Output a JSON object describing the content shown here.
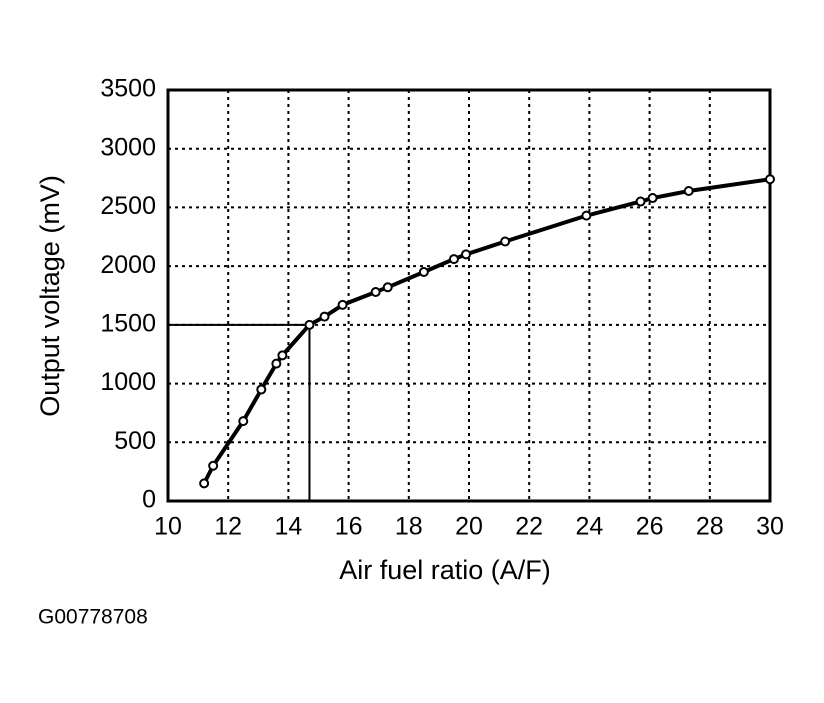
{
  "chart_data": {
    "type": "line",
    "x_label": "Air fuel ratio (A/F)",
    "y_label": "Output voltage (mV)",
    "caption": "G00778708",
    "x": [
      11.2,
      11.5,
      12.5,
      13.1,
      13.6,
      13.8,
      14.7,
      15.2,
      15.8,
      16.9,
      17.3,
      18.5,
      19.5,
      19.9,
      21.2,
      23.9,
      25.7,
      26.1,
      27.3,
      30
    ],
    "series": [
      {
        "name": "Output voltage",
        "color": "#000000",
        "values": [
          150,
          300,
          680,
          950,
          1170,
          1240,
          1500,
          1570,
          1670,
          1780,
          1820,
          1950,
          2060,
          2100,
          2210,
          2430,
          2550,
          2580,
          2640,
          2740
        ]
      }
    ],
    "reference": {
      "x": 14.7,
      "y": 1500
    },
    "xlim": [
      10,
      30
    ],
    "xticks": [
      10,
      12,
      14,
      16,
      18,
      20,
      22,
      24,
      26,
      28,
      30
    ],
    "ylim": [
      0,
      3500
    ],
    "yticks": [
      0,
      500,
      1000,
      1500,
      2000,
      2500,
      3000,
      3500
    ],
    "grid": true
  }
}
